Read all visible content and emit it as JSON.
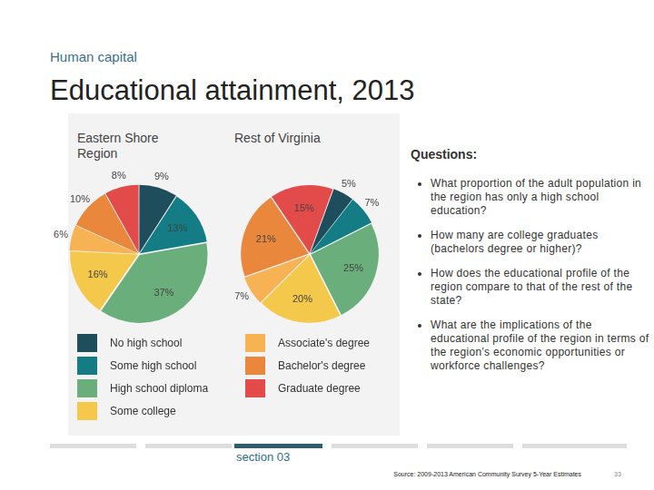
{
  "header": {
    "section": "Human capital",
    "title": "Educational attainment, 2013"
  },
  "chart_data": [
    {
      "type": "pie",
      "title": "Eastern Shore Region",
      "categories": [
        "No high school",
        "Some high school",
        "High school diploma",
        "Some college",
        "Associate's degree",
        "Bachelor's degree",
        "Graduate degree"
      ],
      "values": [
        9,
        13,
        37,
        16,
        6,
        10,
        8
      ],
      "value_labels": [
        "9%",
        "13%",
        "37%",
        "16%",
        "6%",
        "10%",
        "8%"
      ],
      "colors": [
        "#1e4d5c",
        "#137c85",
        "#6aaf7b",
        "#f4c84a",
        "#f6b253",
        "#e9873d",
        "#e34a4a"
      ],
      "data_labels": true,
      "legend": "bottom"
    },
    {
      "type": "pie",
      "title": "Rest of Virginia",
      "categories": [
        "No high school",
        "Some high school",
        "High school diploma",
        "Some college",
        "Associate's degree",
        "Bachelor's degree",
        "Graduate degree"
      ],
      "values": [
        5,
        7,
        25,
        20,
        7,
        21,
        15
      ],
      "value_labels": [
        "5%",
        "7%",
        "25%",
        "20%",
        "7%",
        "21%",
        "15%"
      ],
      "colors": [
        "#1e4d5c",
        "#137c85",
        "#6aaf7b",
        "#f4c84a",
        "#f6b253",
        "#e9873d",
        "#e34a4a"
      ],
      "data_labels": true
    }
  ],
  "questions": {
    "heading": "Questions:",
    "items": [
      "What proportion of the adult population in the region has only a high school education?",
      "How many are college graduates (bachelors degree or higher)?",
      "How does the educational profile of the region compare to that of the rest of the state?",
      "What are the implications of the educational profile of the region in terms of the region’s economic opportunities or workforce challenges?"
    ]
  },
  "footer": {
    "section": "section 03",
    "source": "Source: 2009-2013 American Community Survey 5-Year Estimates",
    "page": "33"
  }
}
